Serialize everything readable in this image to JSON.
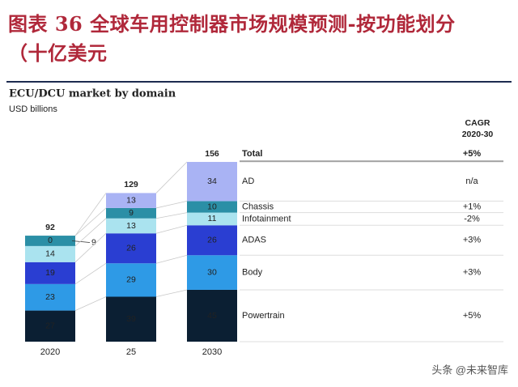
{
  "chart_data": {
    "type": "stacked_bar",
    "figure_title": "图表 36  全球车用控制器市场规模预测-按功能划分（十亿美元",
    "title": "ECU/DCU market by domain",
    "subtitle": "USD billions",
    "cagr_header": [
      "CAGR",
      "2020-30"
    ],
    "categories": [
      "2020",
      "25",
      "2030"
    ],
    "totals": {
      "name": "Total",
      "values": [
        92,
        129,
        156
      ],
      "cagr": "+5%"
    },
    "series": [
      {
        "name": "Powertrain",
        "color": "#0b1f33",
        "label_color": "#ffffff",
        "values": [
          27,
          39,
          45
        ],
        "cagr": "+5%"
      },
      {
        "name": "Body",
        "color": "#2e9ae6",
        "label_color": "#ffffff",
        "values": [
          23,
          29,
          30
        ],
        "cagr": "+3%"
      },
      {
        "name": "ADAS",
        "color": "#2a3ed2",
        "label_color": "#ffffff",
        "values": [
          19,
          26,
          26
        ],
        "cagr": "+3%"
      },
      {
        "name": "Infotainment",
        "color": "#aae3ef",
        "label_color": "#1a2a3a",
        "values": [
          14,
          13,
          11
        ],
        "cagr": "-2%"
      },
      {
        "name": "Chassis",
        "color": "#2b8fa6",
        "label_color": "#ffffff",
        "values": [
          9,
          9,
          10
        ],
        "cagr": "+1%"
      },
      {
        "name": "AD",
        "color": "#a9b3f4",
        "label_color": "#1a2a3a",
        "values": [
          0,
          13,
          34
        ],
        "cagr": "n/a"
      }
    ],
    "watermark": "头条 @未来智库"
  }
}
